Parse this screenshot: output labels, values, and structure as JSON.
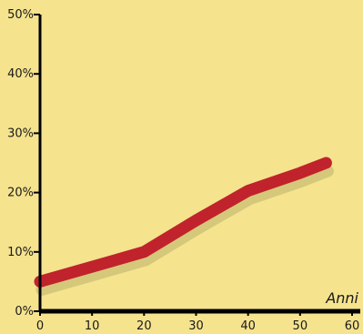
{
  "chart_data": {
    "type": "line",
    "xlabel": "Anni",
    "ylabel": "",
    "title": "",
    "xlim": [
      0,
      60
    ],
    "ylim": [
      0,
      50
    ],
    "x_ticks": [
      0,
      10,
      20,
      30,
      40,
      50,
      60
    ],
    "y_ticks": [
      0,
      10,
      20,
      30,
      40,
      50
    ],
    "y_tick_suffix": "%",
    "grid": false,
    "series": [
      {
        "x": [
          0,
          10,
          20,
          30,
          40,
          50,
          55
        ],
        "values": [
          5,
          7.5,
          10,
          15.3,
          20.3,
          23.3,
          25
        ],
        "color": "#c0232c",
        "shadow_color": "#d1c478"
      }
    ]
  }
}
